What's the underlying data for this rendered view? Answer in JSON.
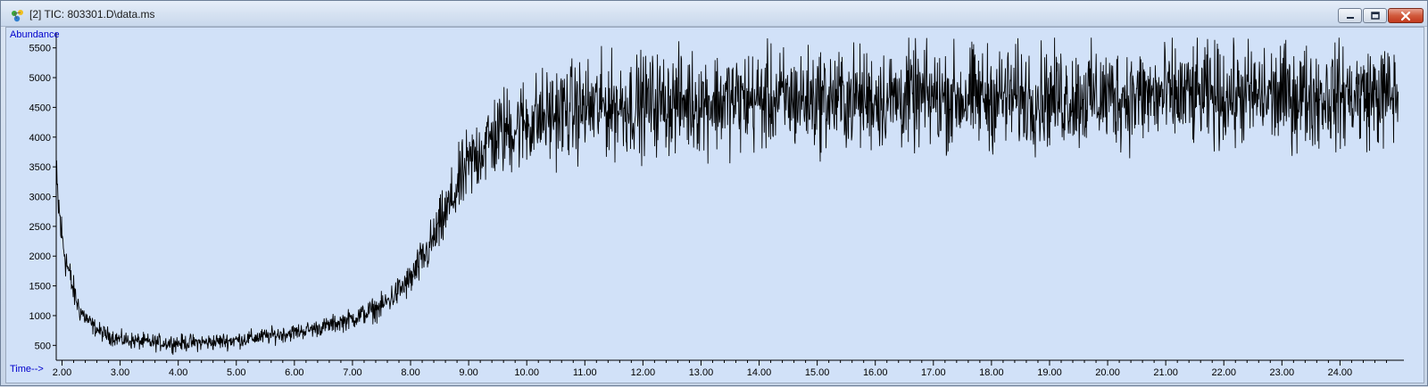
{
  "window": {
    "title": "[2] TIC: 803301.D\\data.ms",
    "app_icon": "chemstation-molecule-icon",
    "buttons": {
      "minimize": "minimize-icon",
      "maximize": "maximize-icon",
      "close": "close-icon"
    }
  },
  "colors": {
    "plot_background": "#d1e1f8",
    "trace": "#000000",
    "axis_label": "#0000cc"
  },
  "chart_data": {
    "type": "line",
    "ylabel": "Abundance",
    "xlabel": "Time-->",
    "xlim": [
      1.9,
      25.1
    ],
    "ylim": [
      250,
      5750
    ],
    "x_ticks": [
      "2.00",
      "3.00",
      "4.00",
      "5.00",
      "6.00",
      "7.00",
      "8.00",
      "9.00",
      "10.00",
      "11.00",
      "12.00",
      "13.00",
      "14.00",
      "15.00",
      "16.00",
      "17.00",
      "18.00",
      "19.00",
      "20.00",
      "21.00",
      "22.00",
      "23.00",
      "24.00"
    ],
    "x_tick_values": [
      2,
      3,
      4,
      5,
      6,
      7,
      8,
      9,
      10,
      11,
      12,
      13,
      14,
      15,
      16,
      17,
      18,
      19,
      20,
      21,
      22,
      23,
      24
    ],
    "y_ticks": [
      "500",
      "1000",
      "1500",
      "2000",
      "2500",
      "3000",
      "3500",
      "4000",
      "4500",
      "5000",
      "5500"
    ],
    "y_tick_values": [
      500,
      1000,
      1500,
      2000,
      2500,
      3000,
      3500,
      4000,
      4500,
      5000,
      5500
    ],
    "grid": false,
    "series": [
      {
        "x": [
          1.9,
          2.0,
          2.1,
          2.2,
          2.3,
          2.5,
          2.7,
          3.0,
          3.5,
          4.0,
          4.5,
          5.0,
          5.5,
          6.0,
          6.5,
          7.0,
          7.5,
          8.0,
          8.3,
          8.6,
          8.9,
          9.2,
          9.5,
          10.0,
          10.5,
          11.0,
          12.0,
          13.0,
          14.0,
          15.0,
          16.0,
          17.0,
          18.0,
          19.0,
          20.0,
          21.0,
          22.0,
          23.0,
          24.0,
          25.0
        ],
        "values": [
          3200,
          2300,
          1800,
          1400,
          1100,
          850,
          700,
          600,
          550,
          540,
          550,
          590,
          650,
          720,
          810,
          950,
          1150,
          1600,
          2100,
          2700,
          3350,
          3800,
          4050,
          4250,
          4400,
          4480,
          4560,
          4600,
          4620,
          4640,
          4650,
          4660,
          4670,
          4670,
          4680,
          4680,
          4690,
          4690,
          4700,
          4700
        ]
      }
    ]
  }
}
